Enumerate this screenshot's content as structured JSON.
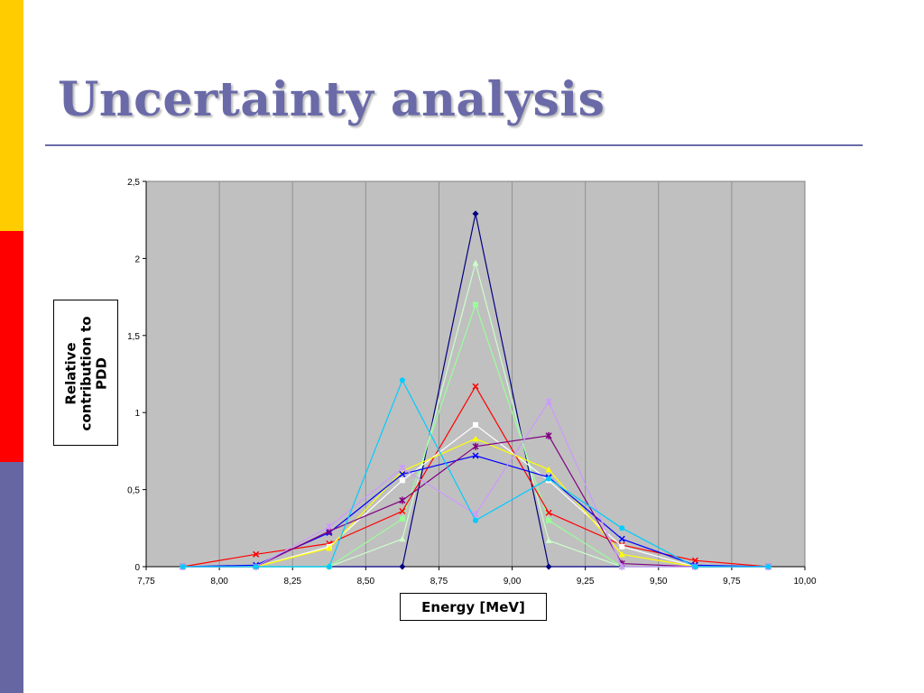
{
  "slide": {
    "title": "Uncertainty analysis"
  },
  "theme": {
    "stripe_colors": [
      "#ffcc00",
      "#ff0000",
      "#6666a3"
    ],
    "title_color": "#6a6aa8",
    "plot_background": "#c0c0c0"
  },
  "chart_data": {
    "type": "line",
    "title": "",
    "xlabel": "Energy [MeV]",
    "ylabel": "Relative contribution to PDD",
    "xlim": [
      7.75,
      10.0
    ],
    "ylim": [
      0,
      2.5
    ],
    "x_ticks": [
      "7,75",
      "8,00",
      "8,25",
      "8,50",
      "8,75",
      "9,00",
      "9,25",
      "9,50",
      "9,75",
      "10,00"
    ],
    "y_ticks": [
      "0",
      "0,5",
      "1",
      "1,5",
      "2",
      "2,5"
    ],
    "grid": "vertical",
    "legend": "none",
    "x": [
      7.875,
      8.125,
      8.375,
      8.625,
      8.875,
      9.125,
      9.375,
      9.625,
      9.875
    ],
    "series": [
      {
        "color": "#000080",
        "marker": "diamond",
        "values": [
          0,
          0,
          0,
          0,
          2.29,
          0,
          0,
          0,
          0
        ]
      },
      {
        "color": "#ccffcc",
        "marker": "triangle",
        "values": [
          0,
          0,
          0,
          0.18,
          1.97,
          0.17,
          0,
          0,
          0
        ]
      },
      {
        "color": "#99ff99",
        "marker": "square",
        "values": [
          0,
          0,
          0,
          0.31,
          1.7,
          0.3,
          0,
          0,
          0
        ]
      },
      {
        "color": "#ff0000",
        "marker": "cross",
        "values": [
          0,
          0.08,
          0.15,
          0.36,
          1.17,
          0.35,
          0.14,
          0.04,
          0
        ]
      },
      {
        "color": "#ffffff",
        "marker": "square",
        "values": [
          0,
          0,
          0.13,
          0.56,
          0.92,
          0.56,
          0.13,
          0,
          0
        ]
      },
      {
        "color": "#ffff00",
        "marker": "triangle",
        "values": [
          0,
          0,
          0.12,
          0.62,
          0.83,
          0.63,
          0.08,
          0,
          0
        ]
      },
      {
        "color": "#0000ff",
        "marker": "cross",
        "values": [
          0,
          0.01,
          0.22,
          0.6,
          0.72,
          0.58,
          0.18,
          0.01,
          0
        ]
      },
      {
        "color": "#800080",
        "marker": "star",
        "values": [
          0,
          0,
          0.23,
          0.43,
          0.78,
          0.85,
          0.02,
          0,
          0
        ]
      },
      {
        "color": "#cc99ff",
        "marker": "star",
        "values": [
          0,
          0,
          0.26,
          0.64,
          0.34,
          1.07,
          0,
          0,
          0
        ]
      },
      {
        "color": "#00ccff",
        "marker": "circle",
        "values": [
          0,
          0,
          0,
          1.21,
          0.3,
          0.57,
          0.25,
          0,
          0
        ]
      }
    ]
  }
}
